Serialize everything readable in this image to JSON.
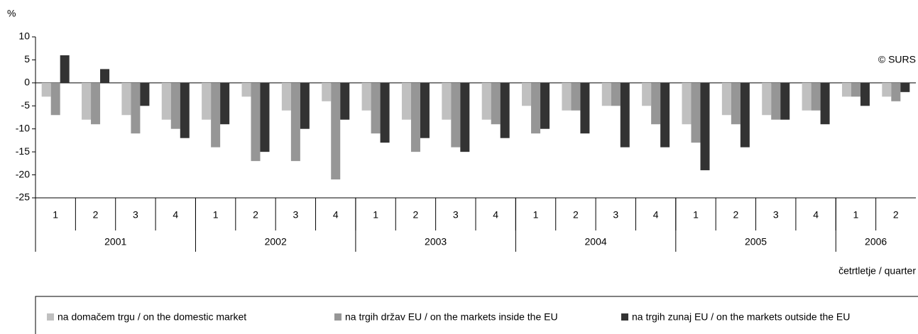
{
  "chart_data": {
    "type": "bar",
    "y_label": "%",
    "x_label": "četrtletje / quarter",
    "annotation": "© SURS",
    "categories": [
      "1",
      "2",
      "3",
      "4",
      "1",
      "2",
      "3",
      "4",
      "1",
      "2",
      "3",
      "4",
      "1",
      "2",
      "3",
      "4",
      "1",
      "2",
      "3",
      "4",
      "1",
      "2"
    ],
    "year_groups": [
      {
        "name": "2001",
        "quarters": 4
      },
      {
        "name": "2002",
        "quarters": 4
      },
      {
        "name": "2003",
        "quarters": 4
      },
      {
        "name": "2004",
        "quarters": 4
      },
      {
        "name": "2005",
        "quarters": 4
      },
      {
        "name": "2006",
        "quarters": 2
      }
    ],
    "series": [
      {
        "name": "na domačem trgu / on the domestic market",
        "color": "#c0c0c0",
        "values": [
          -3,
          -8,
          -7,
          -8,
          -8,
          -3,
          -6,
          -4,
          -6,
          -8,
          -8,
          -8,
          -5,
          -6,
          -5,
          -5,
          -9,
          -7,
          -7,
          -6,
          -3,
          -3
        ]
      },
      {
        "name": "na trgih držav EU / on the markets inside the EU",
        "color": "#969696",
        "values": [
          -7,
          -9,
          -11,
          -10,
          -14,
          -17,
          -17,
          -21,
          -11,
          -15,
          -14,
          -9,
          -11,
          -6,
          -5,
          -9,
          -13,
          -9,
          -8,
          -6,
          -3,
          -4
        ]
      },
      {
        "name": "na trgih zunaj EU / on the markets outside the EU",
        "color": "#333333",
        "values": [
          6,
          3,
          -5,
          -12,
          -9,
          -15,
          -10,
          -8,
          -13,
          -12,
          -15,
          -12,
          -10,
          -11,
          -14,
          -14,
          -19,
          -14,
          -8,
          -9,
          -5,
          -2
        ]
      }
    ],
    "ylim": [
      -25,
      10
    ],
    "yticks": [
      10,
      5,
      0,
      -5,
      -10,
      -15,
      -20,
      -25
    ],
    "grid": false
  }
}
